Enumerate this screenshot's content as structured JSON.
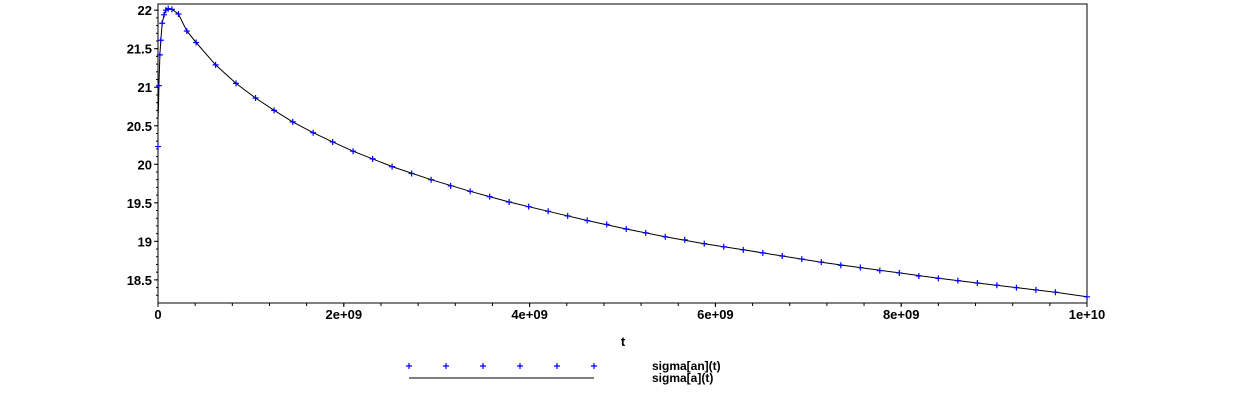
{
  "chart_data": {
    "type": "line",
    "title": "",
    "xlabel": "t",
    "ylabel": "",
    "xlim": [
      0,
      10000000000.0
    ],
    "ylim": [
      18.2,
      22.08
    ],
    "grid": false,
    "legend_position": "bottom",
    "x_ticks": [
      {
        "value": 0,
        "label": "0"
      },
      {
        "value": 2000000000.0,
        "label": "2e+09"
      },
      {
        "value": 4000000000.0,
        "label": "4e+09"
      },
      {
        "value": 6000000000.0,
        "label": "6e+09"
      },
      {
        "value": 8000000000.0,
        "label": "8e+09"
      },
      {
        "value": 10000000000.0,
        "label": "1e+10"
      }
    ],
    "y_ticks": [
      {
        "value": 18.5,
        "label": "18.5"
      },
      {
        "value": 19,
        "label": "19"
      },
      {
        "value": 19.5,
        "label": "19.5"
      },
      {
        "value": 20,
        "label": "20"
      },
      {
        "value": 20.5,
        "label": "20.5"
      },
      {
        "value": 21,
        "label": "21"
      },
      {
        "value": 21.5,
        "label": "21.5"
      },
      {
        "value": 22,
        "label": "22"
      }
    ],
    "series": [
      {
        "name": "sigma[an](t)",
        "style": "points",
        "marker": "+",
        "color": "#0000ff",
        "x": [
          0,
          10000000.0,
          20000000.0,
          30000000.0,
          45000000.0,
          65000000.0,
          85000000.0,
          110000000.0,
          150000000.0,
          220000000.0,
          310000000.0,
          410000000.0,
          620000000.0,
          840000000.0,
          1050000000.0,
          1250000000.0,
          1450000000.0,
          1670000000.0,
          1880000000.0,
          2100000000.0,
          2310000000.0,
          2520000000.0,
          2730000000.0,
          2940000000.0,
          3150000000.0,
          3360000000.0,
          3570000000.0,
          3780000000.0,
          3990000000.0,
          4200000000.0,
          4410000000.0,
          4620000000.0,
          4830000000.0,
          5040000000.0,
          5250000000.0,
          5460000000.0,
          5670000000.0,
          5880000000.0,
          6090000000.0,
          6300000000.0,
          6510000000.0,
          6720000000.0,
          6930000000.0,
          7140000000.0,
          7350000000.0,
          7560000000.0,
          7770000000.0,
          7980000000.0,
          8190000000.0,
          8400000000.0,
          8610000000.0,
          8820000000.0,
          9030000000.0,
          9240000000.0,
          9450000000.0,
          9660000000.0,
          10000000000.0
        ],
        "y": [
          20.23,
          21.02,
          21.42,
          21.61,
          21.83,
          21.94,
          22.0,
          22.02,
          22.01,
          21.95,
          21.73,
          21.58,
          21.29,
          21.05,
          20.86,
          20.7,
          20.55,
          20.41,
          20.29,
          20.17,
          20.07,
          19.97,
          19.88,
          19.8,
          19.72,
          19.65,
          19.58,
          19.51,
          19.45,
          19.39,
          19.33,
          19.27,
          19.22,
          19.16,
          19.11,
          19.06,
          19.02,
          18.97,
          18.93,
          18.89,
          18.85,
          18.81,
          18.77,
          18.73,
          18.69,
          18.66,
          18.62,
          18.59,
          18.55,
          18.52,
          18.49,
          18.46,
          18.43,
          18.4,
          18.37,
          18.34,
          18.28
        ]
      },
      {
        "name": "sigma[a](t)",
        "style": "line",
        "color": "#000000",
        "x": [
          0,
          5000000.0,
          10000000.0,
          20000000.0,
          30000000.0,
          45000000.0,
          65000000.0,
          85000000.0,
          110000000.0,
          150000000.0,
          220000000.0,
          310000000.0,
          410000000.0,
          620000000.0,
          840000000.0,
          1050000000.0,
          1250000000.0,
          1450000000.0,
          1670000000.0,
          1880000000.0,
          2100000000.0,
          2520000000.0,
          2940000000.0,
          3360000000.0,
          3780000000.0,
          4200000000.0,
          4620000000.0,
          5040000000.0,
          5460000000.0,
          5880000000.0,
          6300000000.0,
          6720000000.0,
          7140000000.0,
          7560000000.0,
          7980000000.0,
          8400000000.0,
          8820000000.0,
          9240000000.0,
          9660000000.0,
          10000000000.0
        ],
        "y": [
          20.6,
          20.75,
          21.02,
          21.42,
          21.61,
          21.83,
          21.94,
          22.0,
          22.02,
          22.01,
          21.95,
          21.73,
          21.58,
          21.29,
          21.05,
          20.86,
          20.7,
          20.55,
          20.41,
          20.29,
          20.17,
          19.97,
          19.8,
          19.65,
          19.51,
          19.39,
          19.27,
          19.16,
          19.06,
          18.97,
          18.89,
          18.81,
          18.73,
          18.66,
          18.59,
          18.52,
          18.46,
          18.4,
          18.34,
          18.28
        ]
      }
    ]
  },
  "axes": {
    "x_label": "t"
  },
  "legend": {
    "items": [
      {
        "label": "sigma[an](t)",
        "style": "points"
      },
      {
        "label": "sigma[a](t)",
        "style": "line"
      }
    ]
  }
}
